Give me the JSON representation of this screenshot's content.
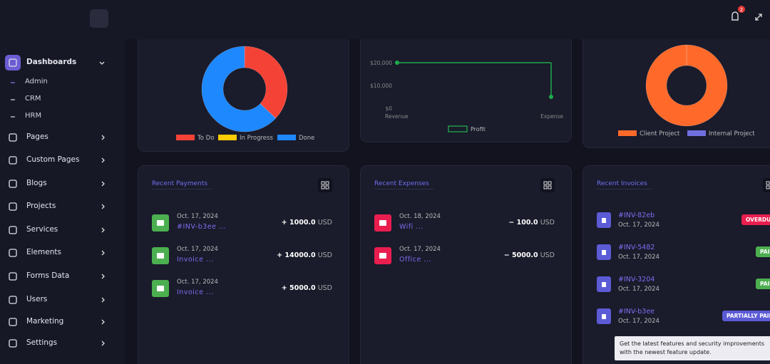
{
  "header": {
    "notification_count": "2"
  },
  "sidebar": {
    "items": [
      "Dashboards",
      "Pages",
      "Custom Pages",
      "Blogs",
      "Projects",
      "Services",
      "Elements",
      "Forms Data",
      "Users",
      "Marketing",
      "Settings"
    ],
    "submenu": [
      "Admin",
      "CRM",
      "HRM"
    ]
  },
  "chart_data": [
    {
      "type": "donut",
      "categories": [
        "To Do",
        "In Progress",
        "Done"
      ],
      "values": [
        37,
        0,
        63
      ],
      "colors": [
        "#f44336",
        "#ffcc00",
        "#1e88ff"
      ]
    },
    {
      "type": "line",
      "categories": [
        "Revenue",
        "Expense"
      ],
      "series": [
        {
          "name": "Profit",
          "color": "#1faa4a",
          "values": [
            20000,
            5000
          ]
        }
      ],
      "ylim": [
        0,
        20000
      ],
      "yticks": [
        {
          "value": 0,
          "label": "$0"
        },
        {
          "value": 10000,
          "label": "$10,000"
        },
        {
          "value": 20000,
          "label": "$20,000"
        }
      ]
    },
    {
      "type": "donut",
      "categories": [
        "Client Project",
        "Internal Project"
      ],
      "values": [
        100,
        0
      ],
      "colors": [
        "#ff6a2b",
        "#6f6fe0"
      ]
    }
  ],
  "payments": {
    "title": "Recent Payments",
    "items": [
      {
        "date": "Oct. 17, 2024",
        "ref": "#INV-b3ee ...",
        "amount": "+ 1000.0",
        "currency": "USD"
      },
      {
        "date": "Oct. 17, 2024",
        "ref": "Invoice ...",
        "amount": "+ 14000.0",
        "currency": "USD"
      },
      {
        "date": "Oct. 17, 2024",
        "ref": "Invoice ...",
        "amount": "+ 5000.0",
        "currency": "USD"
      }
    ]
  },
  "expenses": {
    "title": "Recent Expenses",
    "items": [
      {
        "date": "Oct. 18, 2024",
        "ref": "Wifi ...",
        "amount": "− 100.0",
        "currency": "USD"
      },
      {
        "date": "Oct. 17, 2024",
        "ref": "Office ...",
        "amount": "− 5000.0",
        "currency": "USD"
      }
    ]
  },
  "invoices": {
    "title": "Recent Invoices",
    "items": [
      {
        "ref": "#INV-82eb",
        "date": "Oct. 17, 2024",
        "status": "OVERDUE"
      },
      {
        "ref": "#INV-5482",
        "date": "Oct. 17, 2024",
        "status": "PAID"
      },
      {
        "ref": "#INV-3204",
        "date": "Oct. 17, 2024",
        "status": "PAID"
      },
      {
        "ref": "#INV-b3ee",
        "date": "Oct. 17, 2024",
        "status": "PARTIALLY PAID"
      }
    ]
  },
  "tooltip": "Get the latest features and security improvements with the newest feature update."
}
